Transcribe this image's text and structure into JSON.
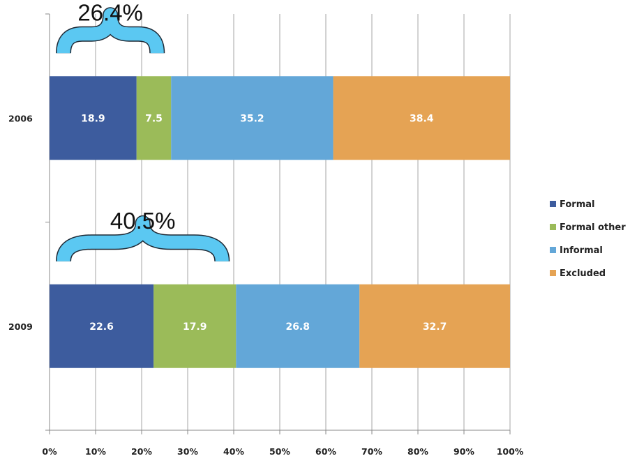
{
  "chart_data": {
    "type": "bar",
    "orientation": "horizontal",
    "stacked": "percent",
    "categories": [
      "2006",
      "2009"
    ],
    "series": [
      {
        "name": "Formal",
        "color": "#3d5c9e",
        "values": [
          18.9,
          22.6
        ]
      },
      {
        "name": "Formal other",
        "color": "#9bbb59",
        "values": [
          7.5,
          17.9
        ]
      },
      {
        "name": "Informal",
        "color": "#63a7d8",
        "values": [
          35.2,
          26.8
        ]
      },
      {
        "name": "Excluded",
        "color": "#e5a354",
        "values": [
          38.4,
          32.7
        ]
      }
    ],
    "x_ticks": [
      "0%",
      "10%",
      "20%",
      "30%",
      "40%",
      "50%",
      "60%",
      "70%",
      "80%",
      "90%",
      "100%"
    ],
    "xlim": [
      0,
      100
    ],
    "grid": "vertical",
    "legend_position": "right",
    "annotations": [
      {
        "text": "26.4%",
        "category": "2006",
        "span": [
          0,
          26.4
        ],
        "color": "#5bc8f2"
      },
      {
        "text": "40.5%",
        "category": "2009",
        "span": [
          0,
          40.5
        ],
        "color": "#5bc8f2"
      }
    ]
  }
}
